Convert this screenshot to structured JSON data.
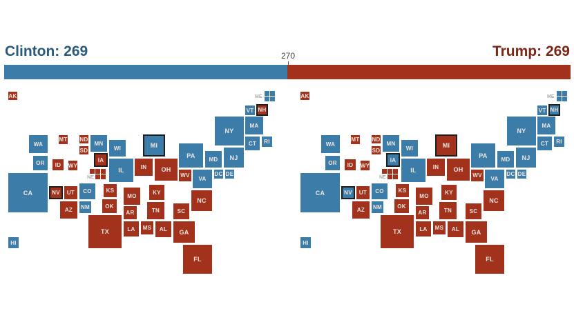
{
  "header": {
    "clinton_label": "Clinton: 269",
    "trump_label": "Trump: 269",
    "threshold_label": "270",
    "clinton_votes": 269,
    "trump_votes": 269,
    "total_votes": 538
  },
  "colors": {
    "dem": "#3b7ca8",
    "rep": "#a3321d"
  },
  "maps": [
    {
      "name": "left",
      "states": {
        "AK": "rep",
        "ME": "dem",
        "VT": "dem",
        "NH": "rep",
        "NY": "dem",
        "MA": "dem",
        "CT": "dem",
        "RI": "dem",
        "WA": "dem",
        "MT": "rep",
        "ND": "rep",
        "SD": "rep",
        "MN": "dem",
        "WI": "dem",
        "MI": "dem",
        "OR": "dem",
        "ID": "rep",
        "WY": "rep",
        "IA": "rep",
        "NE": "rep",
        "IL": "dem",
        "IN": "rep",
        "OH": "rep",
        "PA": "dem",
        "MD": "dem",
        "NJ": "dem",
        "WV": "rep",
        "VA": "dem",
        "DC": "dem",
        "DE": "dem",
        "CA": "dem",
        "NV": "rep",
        "UT": "rep",
        "CO": "dem",
        "NM": "dem",
        "AZ": "rep",
        "KS": "rep",
        "OK": "rep",
        "MO": "rep",
        "KY": "rep",
        "TN": "rep",
        "AR": "rep",
        "TX": "rep",
        "LA": "rep",
        "MS": "rep",
        "AL": "rep",
        "SC": "rep",
        "NC": "rep",
        "GA": "rep",
        "FL": "rep",
        "HI": "dem"
      },
      "highlighted": [
        "NH",
        "MI",
        "IA",
        "NV"
      ]
    },
    {
      "name": "right",
      "states": {
        "AK": "rep",
        "ME": "dem",
        "VT": "dem",
        "NH": "dem",
        "NY": "dem",
        "MA": "dem",
        "CT": "dem",
        "RI": "dem",
        "WA": "dem",
        "MT": "rep",
        "ND": "rep",
        "SD": "rep",
        "MN": "dem",
        "WI": "dem",
        "MI": "rep",
        "OR": "dem",
        "ID": "rep",
        "WY": "rep",
        "IA": "dem",
        "NE": "rep",
        "IL": "dem",
        "IN": "rep",
        "OH": "rep",
        "PA": "dem",
        "MD": "dem",
        "NJ": "dem",
        "WV": "rep",
        "VA": "dem",
        "DC": "dem",
        "DE": "dem",
        "CA": "dem",
        "NV": "dem",
        "UT": "rep",
        "CO": "dem",
        "NM": "dem",
        "AZ": "rep",
        "KS": "rep",
        "OK": "rep",
        "MO": "rep",
        "KY": "rep",
        "TN": "rep",
        "AR": "rep",
        "TX": "rep",
        "LA": "rep",
        "MS": "rep",
        "AL": "rep",
        "SC": "rep",
        "NC": "rep",
        "GA": "rep",
        "FL": "rep",
        "HI": "dem"
      },
      "highlighted": [
        "NH",
        "MI",
        "IA",
        "NV"
      ]
    }
  ]
}
